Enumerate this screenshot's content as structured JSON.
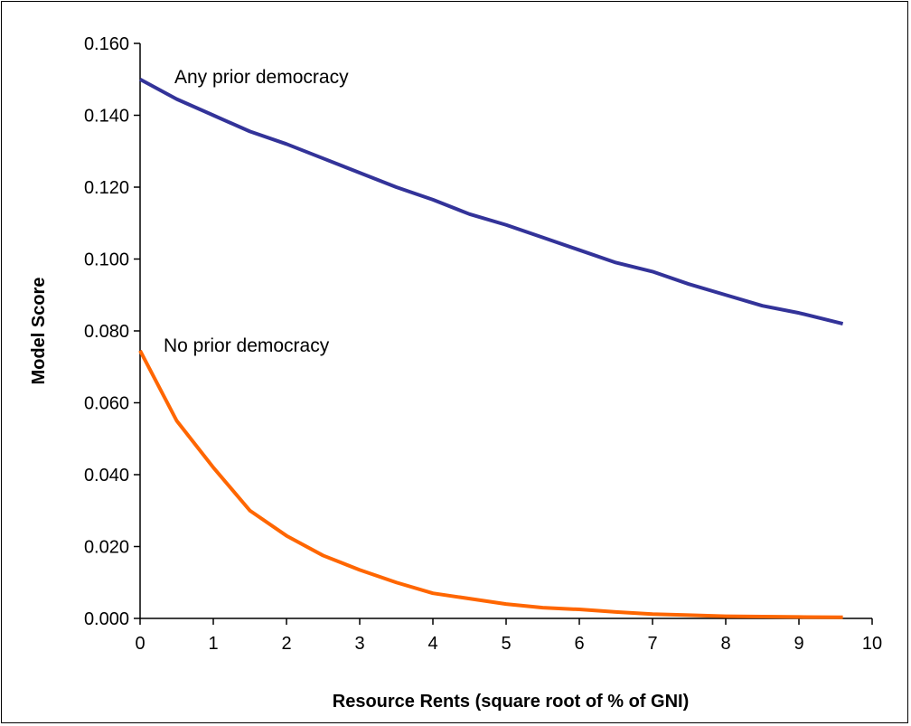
{
  "chart_data": {
    "type": "line",
    "title": "",
    "xlabel": "Resource Rents (square root of % of GNI)",
    "ylabel": "Model Score",
    "xlim": [
      0,
      10
    ],
    "ylim": [
      0,
      0.16
    ],
    "x_ticks": [
      "0",
      "1",
      "2",
      "3",
      "4",
      "5",
      "6",
      "7",
      "8",
      "9",
      "10"
    ],
    "y_ticks": [
      "0.000",
      "0.020",
      "0.040",
      "0.060",
      "0.080",
      "0.100",
      "0.120",
      "0.140",
      "0.160"
    ],
    "grid": false,
    "legend": "none",
    "x": [
      0,
      0.5,
      1,
      1.5,
      2,
      2.5,
      3,
      3.5,
      4,
      4.5,
      5,
      5.5,
      6,
      6.5,
      7,
      7.5,
      8,
      8.5,
      9,
      9.6
    ],
    "series": [
      {
        "name": "Any prior democracy",
        "color": "#333399",
        "values": [
          0.15,
          0.1445,
          0.14,
          0.1355,
          0.132,
          0.128,
          0.124,
          0.12,
          0.1165,
          0.1125,
          0.1095,
          0.106,
          0.1025,
          0.099,
          0.0965,
          0.093,
          0.09,
          0.087,
          0.085,
          0.082
        ]
      },
      {
        "name": "No prior democracy",
        "color": "#FF6600",
        "values": [
          0.0745,
          0.055,
          0.042,
          0.03,
          0.023,
          0.0175,
          0.0135,
          0.01,
          0.007,
          0.0055,
          0.004,
          0.003,
          0.0025,
          0.0018,
          0.0012,
          0.0009,
          0.0006,
          0.0005,
          0.0004,
          0.0003
        ]
      }
    ],
    "annotations": [
      {
        "text": "Any prior democracy",
        "series": 0
      },
      {
        "text": "No prior democracy",
        "series": 1
      }
    ]
  }
}
